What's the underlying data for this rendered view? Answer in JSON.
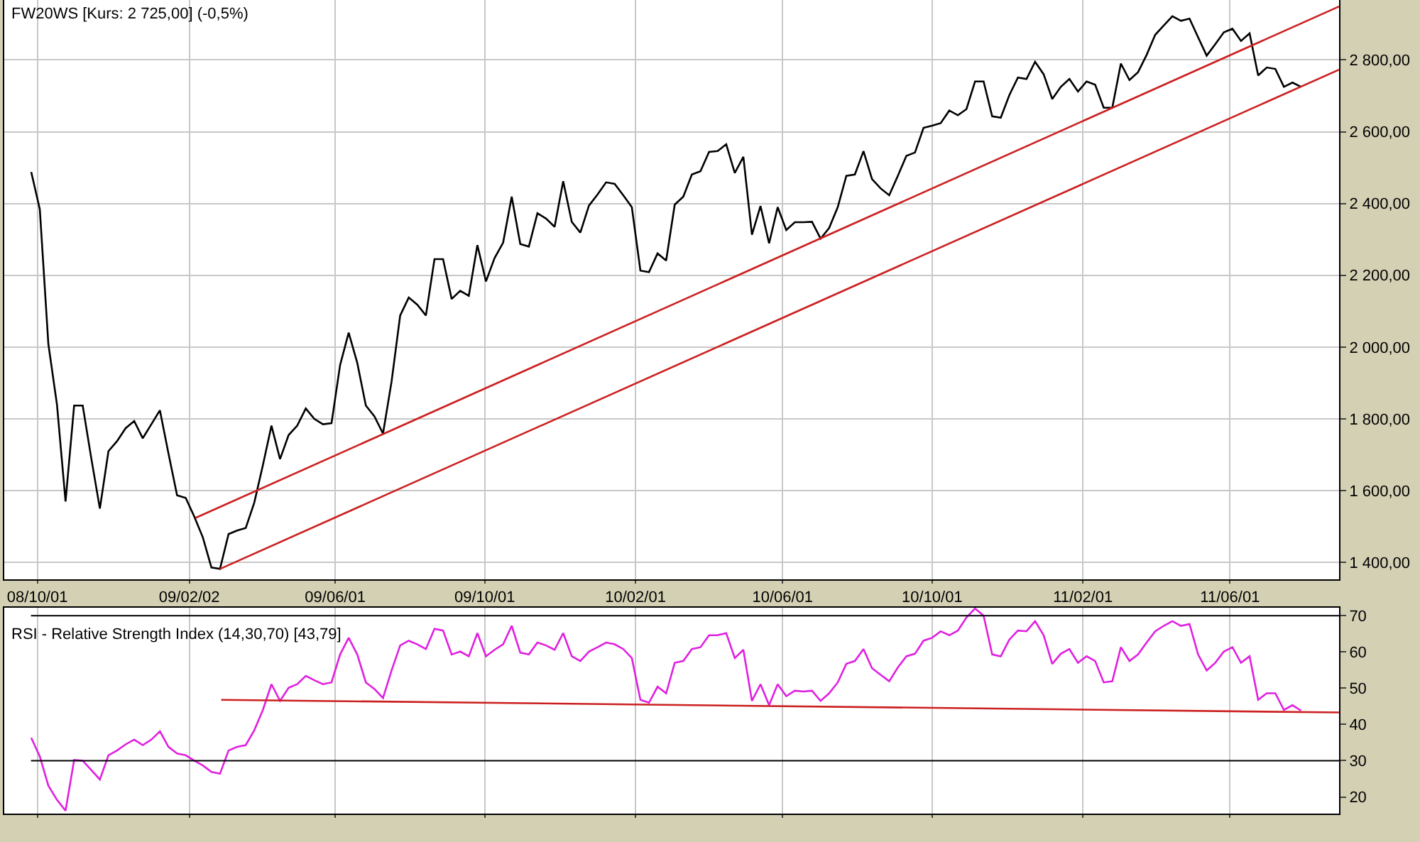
{
  "chart_data": [
    {
      "type": "line",
      "title": "FW20WS [Kurs: 2 725,00] (-0,5%)",
      "x": [
        "2008-09-26",
        "2008-10-03",
        "2008-10-10",
        "2008-10-17",
        "2008-10-24",
        "2008-10-31",
        "2008-11-07",
        "2008-11-14",
        "2008-11-21",
        "2008-11-28",
        "2008-12-05",
        "2008-12-12",
        "2008-12-19",
        "2008-12-26",
        "2009-01-02",
        "2009-01-09",
        "2009-01-16",
        "2009-01-23",
        "2009-01-30",
        "2009-02-06",
        "2009-02-13",
        "2009-02-20",
        "2009-02-27",
        "2009-03-06",
        "2009-03-13",
        "2009-03-20",
        "2009-03-27",
        "2009-04-03",
        "2009-04-10",
        "2009-04-17",
        "2009-04-24",
        "2009-05-01",
        "2009-05-08",
        "2009-05-15",
        "2009-05-22",
        "2009-05-29",
        "2009-06-05",
        "2009-06-12",
        "2009-06-19",
        "2009-06-26",
        "2009-07-03",
        "2009-07-10",
        "2009-07-17",
        "2009-07-24",
        "2009-07-31",
        "2009-08-07",
        "2009-08-14",
        "2009-08-21",
        "2009-08-28",
        "2009-09-04",
        "2009-09-11",
        "2009-09-18",
        "2009-09-25",
        "2009-10-02",
        "2009-10-09",
        "2009-10-16",
        "2009-10-23",
        "2009-10-30",
        "2009-11-06",
        "2009-11-13",
        "2009-11-20",
        "2009-11-27",
        "2009-12-04",
        "2009-12-11",
        "2009-12-18",
        "2009-12-25",
        "2010-01-01",
        "2010-01-08",
        "2010-01-15",
        "2010-01-22",
        "2010-01-29",
        "2010-02-05",
        "2010-02-12",
        "2010-02-19",
        "2010-02-26",
        "2010-03-05",
        "2010-03-12",
        "2010-03-19",
        "2010-03-26",
        "2010-04-02",
        "2010-04-09",
        "2010-04-16",
        "2010-04-23",
        "2010-04-30",
        "2010-05-07",
        "2010-05-14",
        "2010-05-21",
        "2010-05-28",
        "2010-06-04",
        "2010-06-11",
        "2010-06-18",
        "2010-06-25",
        "2010-07-02",
        "2010-07-09",
        "2010-07-16",
        "2010-07-23",
        "2010-07-30",
        "2010-08-06",
        "2010-08-13",
        "2010-08-20",
        "2010-08-27",
        "2010-09-03",
        "2010-09-10",
        "2010-09-17",
        "2010-09-24",
        "2010-10-01",
        "2010-10-08",
        "2010-10-15",
        "2010-10-22",
        "2010-10-29",
        "2010-11-05",
        "2010-11-12",
        "2010-11-19",
        "2010-11-26",
        "2010-12-03",
        "2010-12-10",
        "2010-12-17",
        "2010-12-24",
        "2010-12-31",
        "2011-01-07",
        "2011-01-14",
        "2011-01-21",
        "2011-01-28",
        "2011-02-04",
        "2011-02-11",
        "2011-02-18",
        "2011-02-25",
        "2011-03-04",
        "2011-03-11",
        "2011-03-18",
        "2011-03-25",
        "2011-04-01",
        "2011-04-08",
        "2011-04-15",
        "2011-04-22",
        "2011-04-29",
        "2011-05-06",
        "2011-05-13",
        "2011-05-20",
        "2011-05-27",
        "2011-06-03",
        "2011-06-10",
        "2011-06-17",
        "2011-06-24",
        "2011-07-01",
        "2011-07-08",
        "2011-07-15",
        "2011-07-22",
        "2011-07-29"
      ],
      "series": [
        {
          "color": "#000000",
          "values": [
            2488,
            2384,
            2008,
            1840,
            1570,
            1837,
            1837,
            1690,
            1550,
            1710,
            1738,
            1774,
            1794,
            1746,
            1785,
            1824,
            1703,
            1587,
            1580,
            1528,
            1470,
            1386,
            1382,
            1479,
            1489,
            1496,
            1567,
            1671,
            1781,
            1688,
            1755,
            1781,
            1829,
            1800,
            1785,
            1788,
            1950,
            2040,
            1956,
            1837,
            1807,
            1759,
            1904,
            2088,
            2138,
            2118,
            2088,
            2245,
            2245,
            2134,
            2157,
            2143,
            2284,
            2183,
            2248,
            2291,
            2419,
            2287,
            2280,
            2373,
            2358,
            2335,
            2462,
            2349,
            2319,
            2394,
            2425,
            2459,
            2455,
            2423,
            2390,
            2213,
            2209,
            2261,
            2241,
            2397,
            2419,
            2481,
            2490,
            2544,
            2546,
            2565,
            2485,
            2530,
            2313,
            2393,
            2289,
            2390,
            2326,
            2348,
            2348,
            2349,
            2302,
            2332,
            2390,
            2477,
            2481,
            2546,
            2468,
            2442,
            2423,
            2477,
            2533,
            2542,
            2611,
            2617,
            2624,
            2659,
            2646,
            2663,
            2740,
            2740,
            2643,
            2639,
            2702,
            2751,
            2747,
            2795,
            2760,
            2691,
            2725,
            2747,
            2712,
            2740,
            2731,
            2667,
            2667,
            2790,
            2744,
            2766,
            2814,
            2870,
            2896,
            2922,
            2909,
            2915,
            2863,
            2812,
            2844,
            2877,
            2887,
            2853,
            2874,
            2757,
            2779,
            2775,
            2725,
            2737,
            2725
          ]
        },
        {
          "type": "line",
          "color": "#cc2020",
          "x": [
            "2009-02-07",
            "2011-08-29"
          ],
          "values": [
            1524,
            2949
          ]
        },
        {
          "type": "line",
          "color": "#cc2020",
          "x": [
            "2009-02-27",
            "2011-08-29"
          ],
          "values": [
            1382,
            2773
          ]
        }
      ],
      "xlim": [
        "2008-09-04",
        "2011-08-29"
      ],
      "xticks": [
        {
          "value": "2008-10-01",
          "label": "08/10/01"
        },
        {
          "value": "2009-02-02",
          "label": "09/02/02"
        },
        {
          "value": "2009-06-01",
          "label": "09/06/01"
        },
        {
          "value": "2009-10-01",
          "label": "09/10/01"
        },
        {
          "value": "2010-02-01",
          "label": "10/02/01"
        },
        {
          "value": "2010-06-01",
          "label": "10/06/01"
        },
        {
          "value": "2010-10-01",
          "label": "10/10/01"
        },
        {
          "value": "2011-02-01",
          "label": "11/02/01"
        },
        {
          "value": "2011-06-01",
          "label": "11/06/01"
        }
      ],
      "ylim": [
        1353,
        2967
      ],
      "yticks": [
        {
          "value": 1400,
          "label": "1 400,00"
        },
        {
          "value": 1600,
          "label": "1 600,00"
        },
        {
          "value": 1800,
          "label": "1 800,00"
        },
        {
          "value": 2000,
          "label": "2 000,00"
        },
        {
          "value": 2200,
          "label": "2 200,00"
        },
        {
          "value": 2400,
          "label": "2 400,00"
        },
        {
          "value": 2600,
          "label": "2 600,00"
        },
        {
          "value": 2800,
          "label": "2 800,00"
        }
      ],
      "grid": true
    },
    {
      "type": "line",
      "title": "RSI - Relative Strength Index (14,30,70) [43,79]",
      "x": [
        "2008-09-26",
        "2008-10-03",
        "2008-10-10",
        "2008-10-17",
        "2008-10-24",
        "2008-10-31",
        "2008-11-07",
        "2008-11-14",
        "2008-11-21",
        "2008-11-28",
        "2008-12-05",
        "2008-12-12",
        "2008-12-19",
        "2008-12-26",
        "2009-01-02",
        "2009-01-09",
        "2009-01-16",
        "2009-01-23",
        "2009-01-30",
        "2009-02-06",
        "2009-02-13",
        "2009-02-20",
        "2009-02-27",
        "2009-03-06",
        "2009-03-13",
        "2009-03-20",
        "2009-03-27",
        "2009-04-03",
        "2009-04-10",
        "2009-04-17",
        "2009-04-24",
        "2009-05-01",
        "2009-05-08",
        "2009-05-15",
        "2009-05-22",
        "2009-05-29",
        "2009-06-05",
        "2009-06-12",
        "2009-06-19",
        "2009-06-26",
        "2009-07-03",
        "2009-07-10",
        "2009-07-17",
        "2009-07-24",
        "2009-07-31",
        "2009-08-07",
        "2009-08-14",
        "2009-08-21",
        "2009-08-28",
        "2009-09-04",
        "2009-09-11",
        "2009-09-18",
        "2009-09-25",
        "2009-10-02",
        "2009-10-09",
        "2009-10-16",
        "2009-10-23",
        "2009-10-30",
        "2009-11-06",
        "2009-11-13",
        "2009-11-20",
        "2009-11-27",
        "2009-12-04",
        "2009-12-11",
        "2009-12-18",
        "2009-12-25",
        "2010-01-01",
        "2010-01-08",
        "2010-01-15",
        "2010-01-22",
        "2010-01-29",
        "2010-02-05",
        "2010-02-12",
        "2010-02-19",
        "2010-02-26",
        "2010-03-05",
        "2010-03-12",
        "2010-03-19",
        "2010-03-26",
        "2010-04-02",
        "2010-04-09",
        "2010-04-16",
        "2010-04-23",
        "2010-04-30",
        "2010-05-07",
        "2010-05-14",
        "2010-05-21",
        "2010-05-28",
        "2010-06-04",
        "2010-06-11",
        "2010-06-18",
        "2010-06-25",
        "2010-07-02",
        "2010-07-09",
        "2010-07-16",
        "2010-07-23",
        "2010-07-30",
        "2010-08-06",
        "2010-08-13",
        "2010-08-20",
        "2010-08-27",
        "2010-09-03",
        "2010-09-10",
        "2010-09-17",
        "2010-09-24",
        "2010-10-01",
        "2010-10-08",
        "2010-10-15",
        "2010-10-22",
        "2010-10-29",
        "2010-11-05",
        "2010-11-12",
        "2010-11-19",
        "2010-11-26",
        "2010-12-03",
        "2010-12-10",
        "2010-12-17",
        "2010-12-24",
        "2010-12-31",
        "2011-01-07",
        "2011-01-14",
        "2011-01-21",
        "2011-01-28",
        "2011-02-04",
        "2011-02-11",
        "2011-02-18",
        "2011-02-25",
        "2011-03-04",
        "2011-03-11",
        "2011-03-18",
        "2011-03-25",
        "2011-04-01",
        "2011-04-08",
        "2011-04-15",
        "2011-04-22",
        "2011-04-29",
        "2011-05-06",
        "2011-05-13",
        "2011-05-20",
        "2011-05-27",
        "2011-06-03",
        "2011-06-10",
        "2011-06-17",
        "2011-06-24",
        "2011-07-01",
        "2011-07-08",
        "2011-07-15",
        "2011-07-22",
        "2011-07-29"
      ],
      "series": [
        {
          "color": "#e020e0",
          "values": [
            36.3,
            31.2,
            23.1,
            19.2,
            16.2,
            30.2,
            30,
            27.4,
            24.8,
            31.5,
            32.8,
            34.5,
            35.8,
            34.3,
            35.8,
            38.1,
            33.8,
            32,
            31.5,
            30,
            28.7,
            26.9,
            26.4,
            32.8,
            33.8,
            34.3,
            38.4,
            44,
            51.1,
            46.5,
            50.1,
            51.1,
            53.4,
            52.2,
            51.1,
            51.6,
            59.3,
            63.9,
            59.3,
            51.6,
            49.8,
            47.3,
            54.9,
            61.8,
            63.1,
            62.1,
            60.8,
            66.4,
            65.9,
            59.3,
            60.1,
            58.8,
            65.2,
            58.8,
            60.6,
            62.1,
            67.2,
            59.8,
            59.3,
            62.6,
            61.8,
            60.6,
            65.2,
            58.8,
            57.5,
            60.1,
            61.3,
            62.6,
            62.1,
            60.8,
            58.3,
            46.8,
            46,
            50.4,
            48.6,
            57,
            57.5,
            60.8,
            61.3,
            64.6,
            64.6,
            65.2,
            58.3,
            60.6,
            46.5,
            51.1,
            45.3,
            51.1,
            47.8,
            49.3,
            49.1,
            49.3,
            46.5,
            48.6,
            51.6,
            56.7,
            57.5,
            60.8,
            55.5,
            53.7,
            51.9,
            55.7,
            58.8,
            59.5,
            63.1,
            63.9,
            65.7,
            64.6,
            65.9,
            69.5,
            72,
            70,
            59.3,
            58.8,
            63.4,
            65.9,
            65.7,
            68.5,
            64.6,
            56.7,
            59.5,
            60.8,
            57,
            58.8,
            57.5,
            51.6,
            51.9,
            61.3,
            57.5,
            59.3,
            62.6,
            65.7,
            67.2,
            68.5,
            67.2,
            67.7,
            59.3,
            54.9,
            57,
            60.1,
            61.3,
            57,
            58.8,
            46.8,
            48.6,
            48.6,
            44,
            45.3,
            43.8
          ]
        },
        {
          "type": "line",
          "color": "#cc2020",
          "x": [
            "2009-02-28",
            "2011-08-29"
          ],
          "values": [
            46.8,
            43.3
          ]
        }
      ],
      "ref_lines": [
        {
          "axis": "y",
          "value": 70,
          "color": "#000000"
        },
        {
          "axis": "y",
          "value": 30,
          "color": "#000000"
        }
      ],
      "xlim": [
        "2008-09-04",
        "2011-08-29"
      ],
      "xticks": [
        {
          "value": "2008-10-01",
          "label": null
        },
        {
          "value": "2009-02-02",
          "label": null
        },
        {
          "value": "2009-06-01",
          "label": null
        },
        {
          "value": "2009-10-01",
          "label": null
        },
        {
          "value": "2010-02-01",
          "label": null
        },
        {
          "value": "2010-06-01",
          "label": null
        },
        {
          "value": "2010-10-01",
          "label": null
        },
        {
          "value": "2011-02-01",
          "label": null
        },
        {
          "value": "2011-06-01",
          "label": null
        }
      ],
      "ylim": [
        15.4,
        72.2
      ],
      "yticks": [
        20,
        30,
        40,
        50,
        60,
        70
      ],
      "grid": "x",
      "tick_labels": "y"
    }
  ]
}
